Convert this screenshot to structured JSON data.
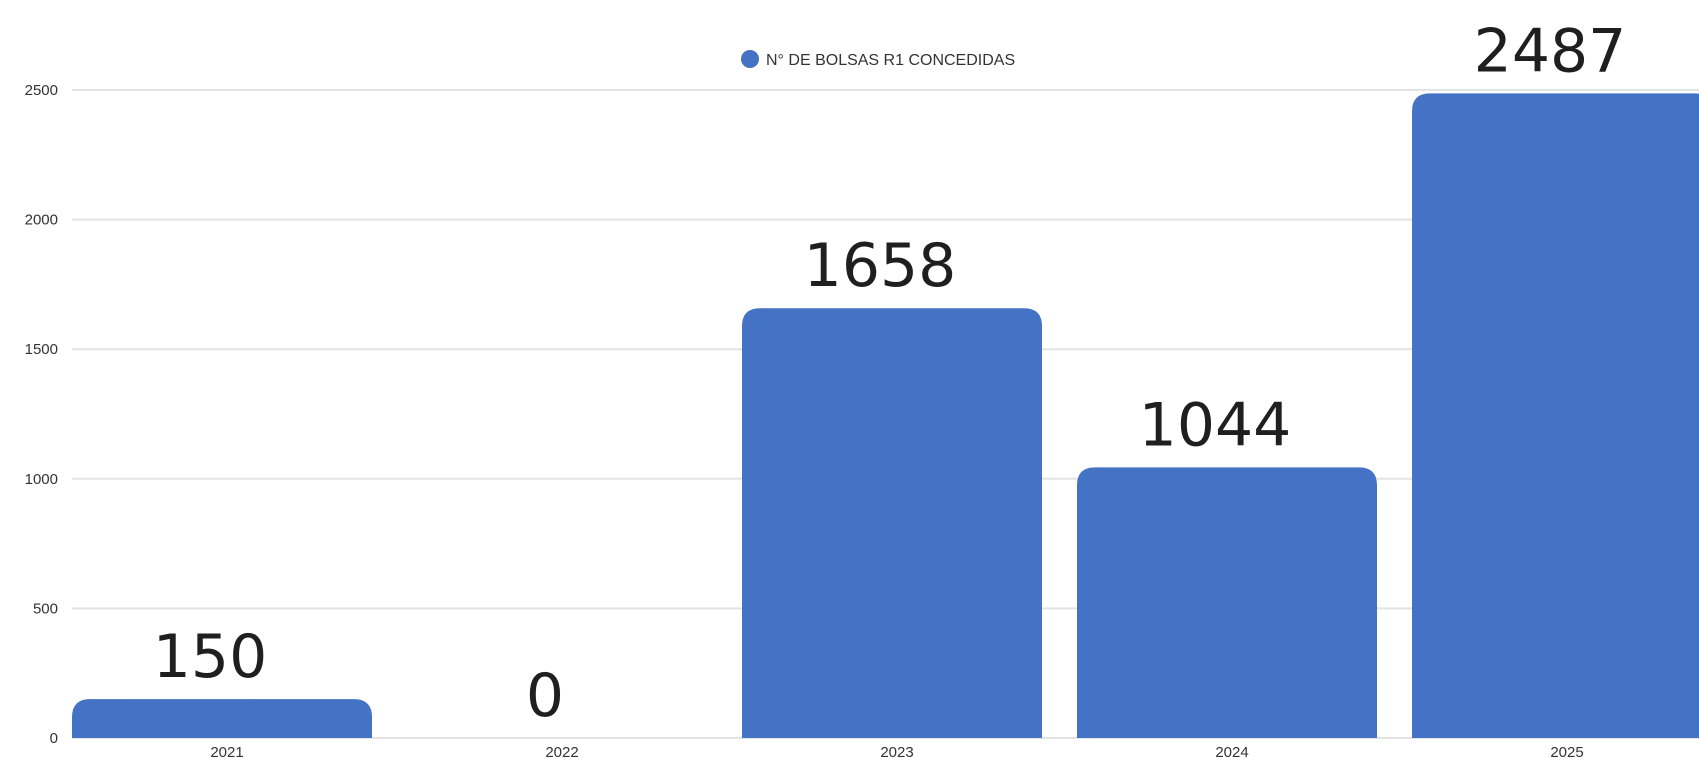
{
  "chart_data": {
    "type": "bar",
    "categories": [
      "2021",
      "2022",
      "2023",
      "2024",
      "2025"
    ],
    "series": [
      {
        "name": "N° DE BOLSAS R1 CONCEDIDAS",
        "values": [
          150,
          0,
          1658,
          1044,
          2487
        ]
      }
    ],
    "data_labels": [
      "150",
      "0",
      "1658",
      "1044",
      "2487"
    ],
    "ylim": [
      0,
      2500
    ],
    "yticks": [
      "0",
      "500",
      "1000",
      "1500",
      "2000",
      "2500"
    ],
    "grid": true,
    "legend_position": "top",
    "colors": {
      "bar": "#4472c4",
      "grid": "#e3e3e3",
      "text": "#333333"
    }
  }
}
